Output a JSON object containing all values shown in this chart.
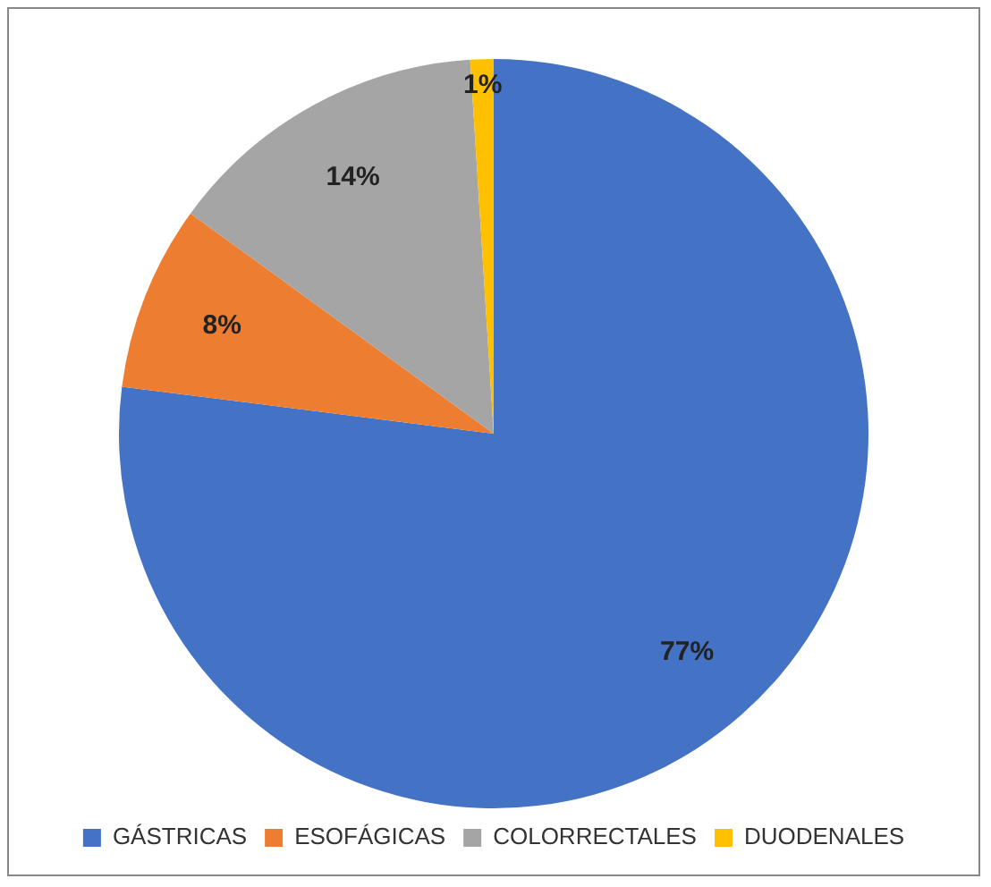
{
  "chart_data": {
    "type": "pie",
    "categories": [
      "GÁSTRICAS",
      "ESOFÁGICAS",
      "COLORRECTALES",
      "DUODENALES"
    ],
    "values": [
      77,
      8,
      14,
      1
    ],
    "colors": [
      "#4472c4",
      "#ed7d31",
      "#a5a5a5",
      "#ffc000"
    ],
    "value_labels": [
      "77%",
      "8%",
      "14%",
      "1%"
    ],
    "legend": "bottom"
  }
}
